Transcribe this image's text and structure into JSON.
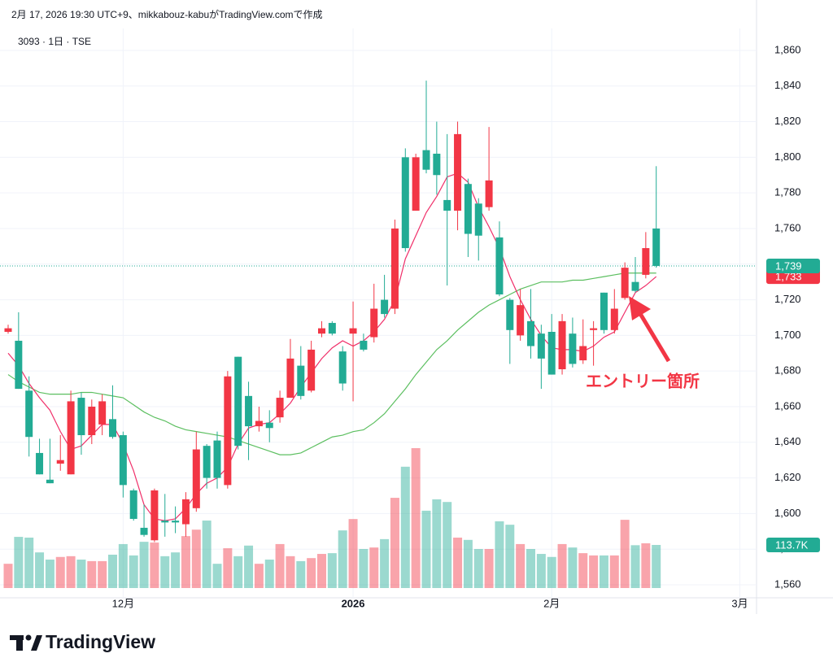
{
  "chart_data": {
    "type": "candlestick",
    "header": "2月 17, 2026 19:30 UTC+9、mikkabouz-kabuがTradingView.comで作成",
    "symbol": "3093 · 1日 · TSE",
    "annotation": "エントリー箇所",
    "logo_text": "TradingView",
    "up_color": "#f23645",
    "down_color": "#22ab94",
    "ma_short_color": "#f0306a",
    "ma_long_color": "#5cbf60",
    "grid": true,
    "ylim": [
      1552.7,
      1872.3
    ],
    "yticks": [
      {
        "value": 1560,
        "label": "1,560"
      },
      {
        "value": 1580,
        "label": "1,580"
      },
      {
        "value": 1600,
        "label": "1,600"
      },
      {
        "value": 1620,
        "label": "1,620"
      },
      {
        "value": 1640,
        "label": "1,640"
      },
      {
        "value": 1660,
        "label": "1,660"
      },
      {
        "value": 1680,
        "label": "1,680"
      },
      {
        "value": 1700,
        "label": "1,700"
      },
      {
        "value": 1720,
        "label": "1,720"
      },
      {
        "value": 1740,
        "label": "1,740"
      },
      {
        "value": 1760,
        "label": "1,760"
      },
      {
        "value": 1780,
        "label": "1,780"
      },
      {
        "value": 1800,
        "label": "1,800"
      },
      {
        "value": 1820,
        "label": "1,820"
      },
      {
        "value": 1840,
        "label": "1,840"
      },
      {
        "value": 1860,
        "label": "1,860"
      }
    ],
    "categories": [
      null,
      null,
      null,
      null,
      null,
      null,
      null,
      null,
      null,
      null,
      null,
      "12月",
      null,
      null,
      null,
      null,
      null,
      null,
      null,
      null,
      null,
      null,
      null,
      null,
      null,
      null,
      null,
      null,
      null,
      null,
      null,
      null,
      null,
      "2026",
      null,
      null,
      null,
      null,
      null,
      null,
      null,
      null,
      null,
      null,
      null,
      null,
      null,
      null,
      null,
      null,
      null,
      null,
      "2月",
      null,
      null,
      null,
      null,
      null,
      null,
      null,
      null,
      null,
      null,
      null,
      null,
      null,
      null,
      null,
      null,
      null,
      "3月"
    ],
    "open": [
      1702,
      1697,
      1669,
      1634,
      1619,
      1628,
      1622,
      1665,
      1644,
      1650,
      1653,
      1644,
      1613,
      1592,
      1585,
      1596,
      1596,
      1594,
      1603,
      1638,
      1641,
      1616,
      1688,
      1666,
      1649,
      1651,
      1654,
      1665,
      1683,
      1669,
      1701,
      1707,
      1691,
      1701,
      1697,
      1699,
      1720,
      1715,
      1800,
      1770,
      1804,
      1802,
      1776,
      1770,
      1785,
      1774,
      1772,
      1755,
      1720,
      1700,
      1708,
      1701,
      1702,
      1681,
      1701,
      1686,
      1703,
      1724,
      1703,
      1721,
      1730,
      1734,
      1760,
      null,
      null,
      null,
      null,
      null,
      null,
      null,
      null
    ],
    "high": [
      1706,
      1713,
      1677,
      1642,
      1642,
      1644,
      1669,
      1668,
      1664,
      1667,
      1672,
      1646,
      1614,
      1605,
      1614,
      1611,
      1604,
      1612,
      1646,
      1639,
      1646,
      1680,
      1688,
      1674,
      1660,
      1658,
      1669,
      1698,
      1694,
      1697,
      1708,
      1708,
      1694,
      1719,
      1701,
      1729,
      1734,
      1765,
      1805,
      1802,
      1843,
      1820,
      1813,
      1820,
      1788,
      1777,
      1817,
      1764,
      1721,
      1726,
      1726,
      1706,
      1712,
      1712,
      1710,
      1709,
      1708,
      1724,
      1726,
      1741,
      1744,
      1758,
      1795,
      null,
      null,
      null,
      null,
      null,
      null,
      null,
      null
    ],
    "low": [
      1701,
      1670,
      1632,
      1622,
      1617,
      1624,
      1622,
      1633,
      1639,
      1644,
      1642,
      1609,
      1596,
      1587,
      1584,
      1587,
      1589,
      1587,
      1601,
      1614,
      1614,
      1614,
      1636,
      1630,
      1646,
      1640,
      1651,
      1665,
      1664,
      1668,
      1699,
      1700,
      1669,
      1663,
      1691,
      1696,
      1710,
      1712,
      1747,
      1770,
      1791,
      1779,
      1728,
      1759,
      1744,
      1742,
      1770,
      1722,
      1684,
      1697,
      1687,
      1670,
      1678,
      1678,
      1682,
      1684,
      1683,
      1701,
      1701,
      1720,
      1724,
      1732,
      1738,
      null,
      null,
      null,
      null,
      null,
      null,
      null,
      null
    ],
    "close": [
      1704,
      1670,
      1643,
      1622,
      1617,
      1630,
      1663,
      1644,
      1660,
      1663,
      1643,
      1616,
      1597,
      1588,
      1613,
      1595,
      1595,
      1608,
      1636,
      1620,
      1620,
      1677,
      1638,
      1649,
      1652,
      1648,
      1665,
      1687,
      1666,
      1692,
      1704,
      1701,
      1673,
      1704,
      1692,
      1715,
      1712,
      1760,
      1749,
      1800,
      1793,
      1790,
      1770,
      1813,
      1757,
      1756,
      1787,
      1723,
      1703,
      1717,
      1694,
      1687,
      1678,
      1708,
      1684,
      1694,
      1704,
      1703,
      1715,
      1738,
      1725,
      1749,
      1739,
      null,
      null,
      null,
      null,
      null,
      null,
      null,
      null
    ],
    "volume": [
      64000,
      135000,
      133000,
      94000,
      75000,
      82000,
      84000,
      75000,
      71000,
      71000,
      88000,
      116000,
      86000,
      122000,
      120000,
      84000,
      94000,
      137000,
      154000,
      178000,
      64000,
      105000,
      84000,
      112000,
      64000,
      75000,
      116000,
      84000,
      71000,
      79000,
      90000,
      92000,
      152000,
      182000,
      103000,
      107000,
      129000,
      238000,
      320000,
      369000,
      204000,
      234000,
      227000,
      133000,
      127000,
      103000,
      103000,
      176000,
      167000,
      116000,
      103000,
      90000,
      82000,
      116000,
      107000,
      92000,
      86000,
      86000,
      86000,
      180000,
      113000,
      118000,
      113700,
      null,
      null,
      null,
      null,
      null,
      null,
      null,
      null
    ],
    "ma_short": [
      1690,
      1683,
      1673,
      1665,
      1658,
      1646,
      1636,
      1638,
      1644,
      1650,
      1650,
      1639,
      1624,
      1605,
      1597,
      1596,
      1597,
      1603,
      1611,
      1617,
      1620,
      1626,
      1639,
      1648,
      1650,
      1651,
      1656,
      1662,
      1671,
      1679,
      1687,
      1693,
      1697,
      1694,
      1697,
      1702,
      1709,
      1720,
      1743,
      1756,
      1769,
      1778,
      1789,
      1791,
      1786,
      1772,
      1761,
      1749,
      1733,
      1720,
      1709,
      1700,
      1693,
      1692,
      1692,
      1691,
      1694,
      1699,
      1702,
      1713,
      1724,
      1728,
      1733,
      null,
      null,
      null,
      null,
      null,
      null,
      null,
      null
    ],
    "ma_long": [
      1678,
      1674,
      1671,
      1668,
      1667,
      1667,
      1667,
      1668,
      1668,
      1667,
      1666,
      1665,
      1661,
      1657,
      1654,
      1652,
      1649,
      1647,
      1646,
      1645,
      1644,
      1643,
      1641,
      1639,
      1637,
      1635,
      1633,
      1633,
      1634,
      1637,
      1640,
      1643,
      1644,
      1646,
      1647,
      1651,
      1656,
      1663,
      1670,
      1678,
      1685,
      1692,
      1697,
      1703,
      1708,
      1713,
      1717,
      1720,
      1723,
      1726,
      1728,
      1730,
      1730,
      1730,
      1731,
      1731,
      1732,
      1733,
      1734,
      1735,
      1735,
      1735,
      1735,
      null,
      null,
      null,
      null,
      null,
      null,
      null,
      null
    ],
    "price_labels": [
      {
        "value": 1739,
        "label": "1,739",
        "color": "#22ab94"
      },
      {
        "value": 1733,
        "label": "1,733",
        "color": "#f23645"
      }
    ],
    "volume_label": {
      "value": 113700,
      "label": "113.7K",
      "color": "#22ab94"
    }
  }
}
